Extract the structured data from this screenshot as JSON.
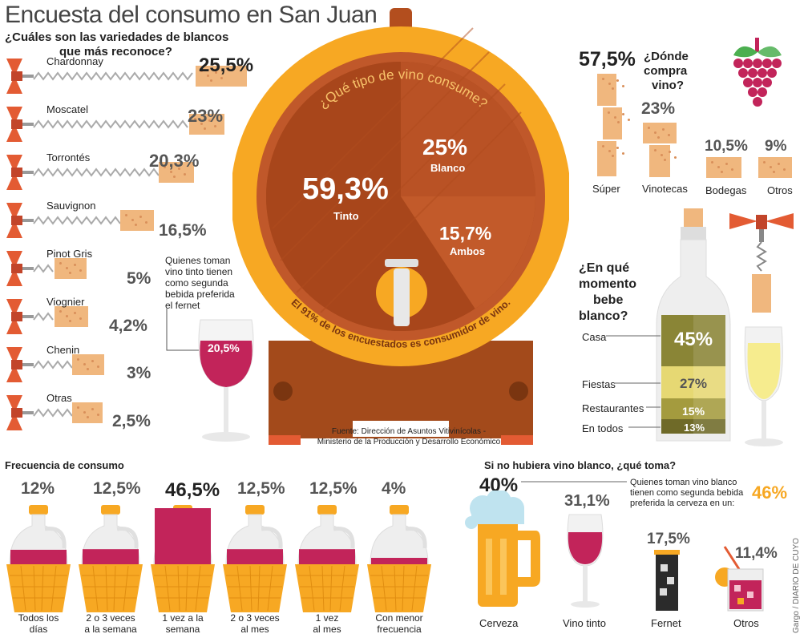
{
  "title": "Encuesta del consumo en San Juan",
  "blancos": {
    "question": [
      "¿Cuáles son las variedades de blancos",
      "que más reconoce?"
    ],
    "items": [
      {
        "name": "Chardonnay",
        "pct": "25,5%"
      },
      {
        "name": "Moscatel",
        "pct": "23%"
      },
      {
        "name": "Torrontés",
        "pct": "20,3%"
      },
      {
        "name": "Sauvignon",
        "pct": "16,5%"
      },
      {
        "name": "Pinot Gris",
        "pct": "5%"
      },
      {
        "name": "Viognier",
        "pct": "4,2%"
      },
      {
        "name": "Chenin",
        "pct": "3%"
      },
      {
        "name": "Otras",
        "pct": "2,5%"
      }
    ]
  },
  "fernet_note": {
    "text": [
      "Quienes toman",
      "vino tinto tienen",
      "como segunda",
      "bebida preferida",
      "el fernet"
    ],
    "pct": "20,5%"
  },
  "barrel": {
    "question": "¿Qué tipo de vino consume?",
    "tinto": {
      "pct": "59,3%",
      "label": "Tinto"
    },
    "blanco": {
      "pct": "25%",
      "label": "Blanco"
    },
    "ambos": {
      "pct": "15,7%",
      "label": "Ambos"
    },
    "footer": "El 91% de los encuestados es consumidor de vino.",
    "source": [
      "Fuente: Dirección de Asuntos Vitivinícolas -",
      "Ministerio de la Producción y Desarrollo Económico"
    ]
  },
  "donde": {
    "question": [
      "¿Dónde",
      "compra",
      "vino?"
    ],
    "super": {
      "pct": "57,5%",
      "label": "Súper"
    },
    "vinotecas": {
      "pct": "23%",
      "label": "Vinotecas"
    },
    "bodegas": {
      "pct": "10,5%",
      "label": "Bodegas"
    },
    "otros": {
      "pct": "9%",
      "label": "Otros"
    }
  },
  "momento": {
    "question": [
      "¿En qué",
      "momento",
      "bebe",
      "blanco?"
    ],
    "items": [
      {
        "label": "Casa",
        "pct": "45%"
      },
      {
        "label": "Fiestas",
        "pct": "27%"
      },
      {
        "label": "Restaurantes",
        "pct": "15%"
      },
      {
        "label": "En todos",
        "pct": "13%"
      }
    ]
  },
  "frecuencia": {
    "title": "Frecuencia de consumo",
    "items": [
      {
        "pct": "12%",
        "label": [
          "Todos los",
          "días"
        ],
        "fill": 12
      },
      {
        "pct": "12,5%",
        "label": [
          "2 o 3 veces",
          "a la semana"
        ],
        "fill": 12.5
      },
      {
        "pct": "46,5%",
        "label": [
          "1 vez a la",
          "semana"
        ],
        "fill": 46.5
      },
      {
        "pct": "12,5%",
        "label": [
          "2 o 3 veces",
          "al mes"
        ],
        "fill": 12.5
      },
      {
        "pct": "12,5%",
        "label": [
          "1 vez",
          "al mes"
        ],
        "fill": 12.5
      },
      {
        "pct": "4%",
        "label": [
          "Con menor",
          "frecuencia"
        ],
        "fill": 4
      }
    ]
  },
  "alternativa": {
    "title": "Si no hubiera vino blanco, ¿qué toma?",
    "note": [
      "Quienes toman vino blanco",
      "tienen como segunda bebida",
      "preferida la cerveza en un:"
    ],
    "note_pct": "46%",
    "cerveza": {
      "pct": "40%",
      "label": "Cerveza"
    },
    "tinto": {
      "pct": "31,1%",
      "label": "Vino tinto"
    },
    "fernet": {
      "pct": "17,5%",
      "label": "Fernet"
    },
    "otros": {
      "pct": "11,4%",
      "label": "Otros"
    }
  },
  "credit": "Gargo / DIARIO DE CUYO",
  "colors": {
    "orange": "#f7a823",
    "barrel_dark": "#a34a1b",
    "barrel_mid": "#c0582a",
    "wine": "#c2245a",
    "cork": "#f0b77e",
    "corkscrew": "#e35b33"
  }
}
